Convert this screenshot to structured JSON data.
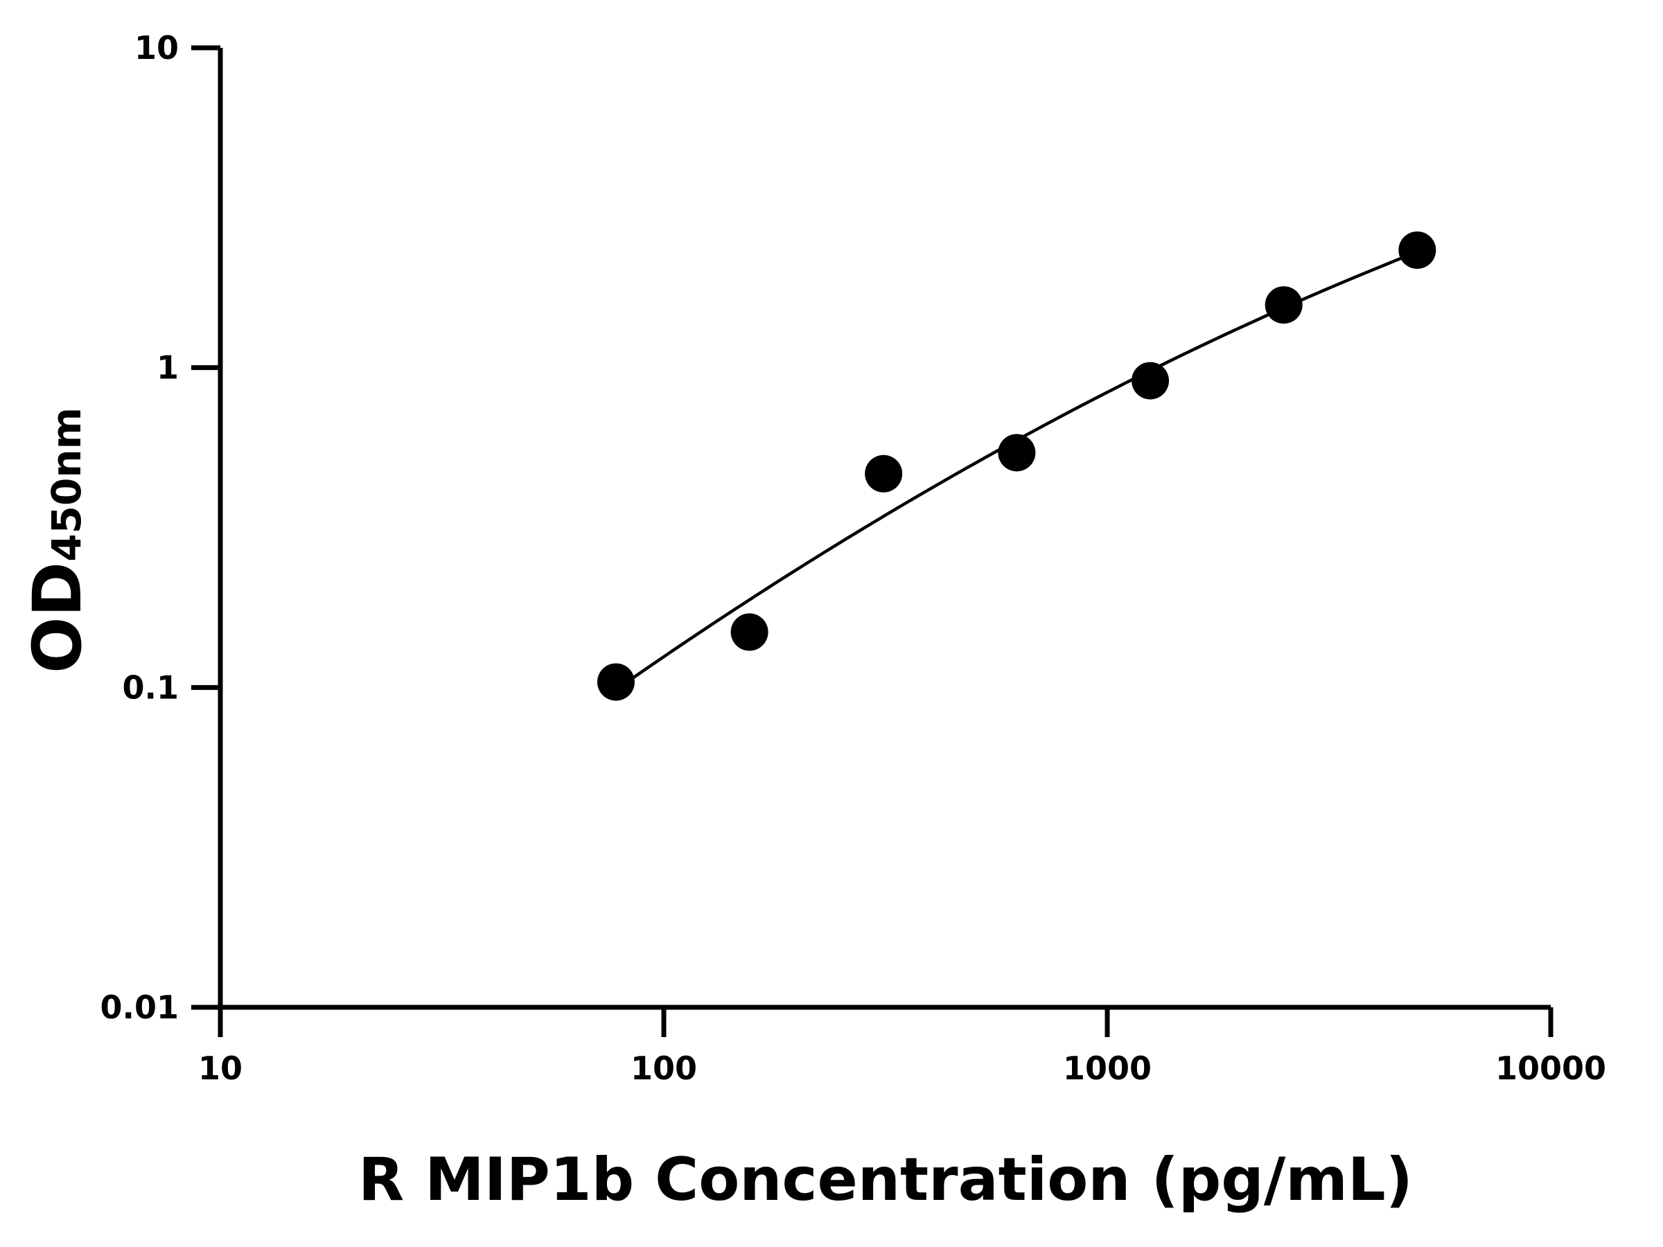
{
  "chart_data": {
    "type": "scatter",
    "title": "",
    "xlabel": "R MIP1b Concentration (pg/mL)",
    "ylabel": "OD",
    "ylabel_subscript": "450nm",
    "x_scale": "log",
    "y_scale": "log",
    "xlim": [
      10,
      10000
    ],
    "ylim": [
      0.01,
      10
    ],
    "x_ticks": [
      "10",
      "100",
      "1000",
      "10000"
    ],
    "y_ticks": [
      "0.01",
      "0.1",
      "1",
      "10"
    ],
    "grid": false,
    "legend": "none",
    "fit_curve": true,
    "series": [
      {
        "x": [
          78,
          156,
          313,
          625,
          1250,
          2500,
          5000
        ],
        "y": [
          0.104,
          0.149,
          0.466,
          0.542,
          0.91,
          1.57,
          2.33
        ]
      }
    ],
    "colors": {
      "points": "#000000",
      "curve": "#000000",
      "axes": "#000000"
    }
  }
}
